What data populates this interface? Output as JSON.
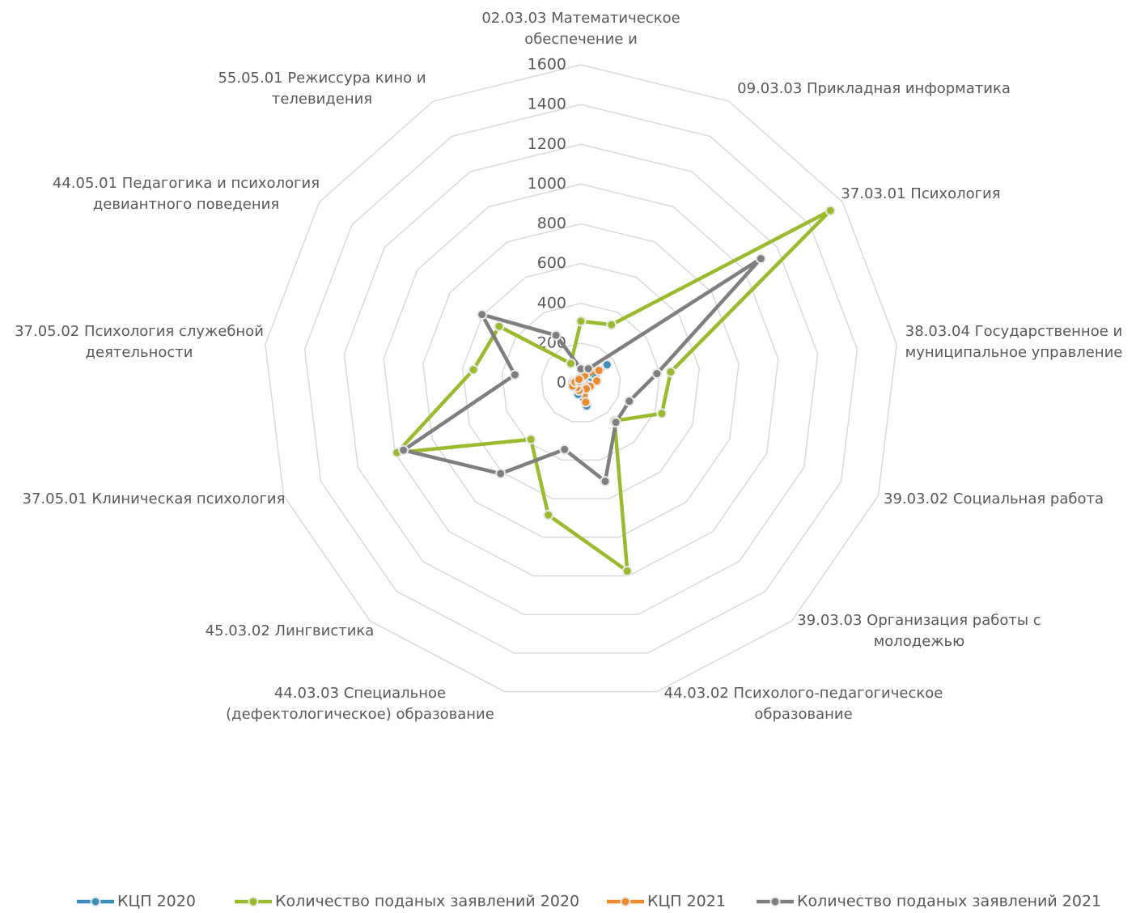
{
  "chart_data": {
    "type": "radar",
    "categories": [
      "02.03.03 Математическое обеспечение и",
      "09.03.03 Прикладная информатика",
      "37.03.01 Психология",
      "38.03.04 Государственное и муниципальное управление",
      "39.03.02 Социальная работа",
      "39.03.03 Организация работы с молодежью",
      "44.03.02 Психолого-педагогическое образование",
      "44.03.03 Специальное (дефектологическое) образование",
      "45.03.02 Лингвистика",
      "37.05.01 Клиническая психология",
      "37.05.02 Психология служебной деятельности",
      "44.05.01 Педагогика и психология девиантного поведения",
      "55.05.01 Режиссура кино и телевидения"
    ],
    "series": [
      {
        "name": "КЦП 2020",
        "color": "#3e8ebd",
        "values": [
          25,
          25,
          160,
          40,
          35,
          30,
          120,
          60,
          25,
          30,
          40,
          15,
          20
        ]
      },
      {
        "name": "Количество поданых заявлений 2020",
        "color": "#9bbb2e",
        "values": [
          310,
          330,
          1525,
          455,
          435,
          255,
          975,
          685,
          380,
          990,
          545,
          500,
          110
        ]
      },
      {
        "name": "КЦП 2021",
        "color": "#ed8b2f",
        "values": [
          30,
          40,
          110,
          80,
          50,
          40,
          100,
          40,
          30,
          45,
          30,
          10,
          20
        ]
      },
      {
        "name": "Количество поданых заявлений 2021",
        "color": "#7f7f7f",
        "values": [
          70,
          80,
          1100,
          385,
          260,
          265,
          510,
          345,
          610,
          955,
          335,
          605,
          270
        ]
      }
    ],
    "ylim": [
      0,
      1600
    ],
    "yticks": [
      0,
      200,
      400,
      600,
      800,
      1000,
      1200,
      1400,
      1600
    ],
    "grid": true,
    "legend": "bottom"
  }
}
